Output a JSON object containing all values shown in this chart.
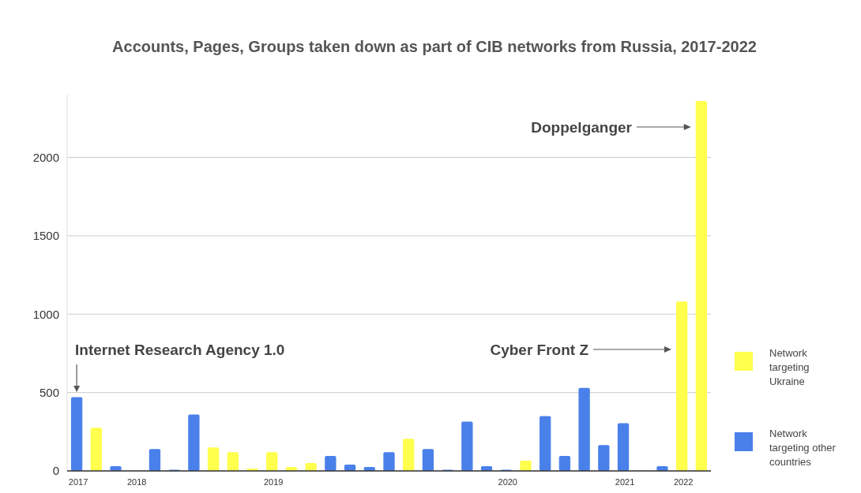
{
  "chart_data": {
    "type": "bar",
    "title": "Accounts, Pages, Groups taken down as part of CIB networks from Russia, 2017-2022",
    "categories": [
      "2017",
      null,
      null,
      "2018",
      null,
      null,
      null,
      null,
      null,
      null,
      "2019",
      null,
      null,
      null,
      null,
      null,
      null,
      null,
      null,
      null,
      null,
      null,
      "2020",
      null,
      null,
      null,
      null,
      null,
      "2021",
      null,
      null,
      "2022",
      null
    ],
    "series": [
      {
        "name": "Network targeting Ukraine",
        "color": "#ffff4d",
        "values": [
          null,
          275,
          null,
          null,
          null,
          null,
          null,
          150,
          120,
          15,
          120,
          25,
          50,
          null,
          null,
          null,
          null,
          205,
          null,
          null,
          null,
          null,
          null,
          65,
          null,
          null,
          null,
          null,
          null,
          null,
          null,
          1080,
          2360
        ]
      },
      {
        "name": "Network targeting other countries",
        "color": "#4a80ea",
        "values": [
          470,
          null,
          30,
          null,
          140,
          8,
          360,
          null,
          null,
          null,
          null,
          null,
          null,
          95,
          40,
          25,
          120,
          null,
          140,
          8,
          315,
          30,
          8,
          null,
          350,
          95,
          530,
          165,
          305,
          null,
          30,
          null,
          null
        ]
      }
    ],
    "ylim": [
      0,
      2400
    ],
    "yticks": [
      0,
      500,
      1000,
      1500,
      2000
    ],
    "grid": "y",
    "legend": "right",
    "annotations": [
      "Internet Research Agency 1.0",
      "Cyber Front Z",
      "Doppelganger"
    ]
  }
}
